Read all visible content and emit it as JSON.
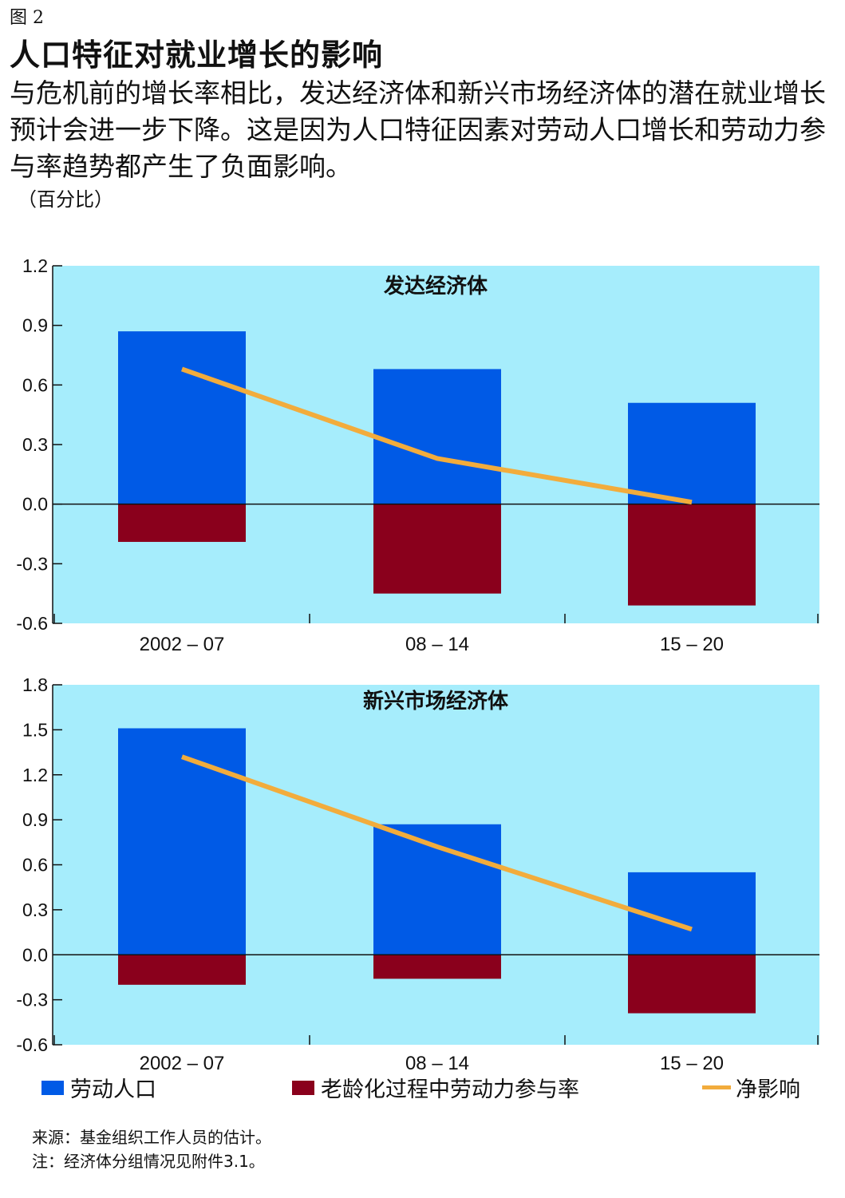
{
  "figure_label": "图 2",
  "title": "人口特征对就业增长的影响",
  "subtitle": "与危机前的增长率相比，发达经济体和新兴市场经济体的潜在就业增长预计会进一步下降。这是因为人口特征因素对劳动人口增长和劳动力参与率趋势都产生了负面影响。",
  "unit": "（百分比）",
  "colors": {
    "plot_background": "#a6edfc",
    "labor_population": "#005ae6",
    "aging_participation": "#8a001c",
    "net_effect": "#f2ac3c"
  },
  "legend": [
    {
      "label": "劳动人口",
      "kind": "bar",
      "color_key": "labor_population"
    },
    {
      "label": "老龄化过程中劳动力参与率",
      "kind": "bar",
      "color_key": "aging_participation"
    },
    {
      "label": "净影响",
      "kind": "line",
      "color_key": "net_effect"
    }
  ],
  "notes": {
    "source": "来源：基金组织工作人员的估计。",
    "note": "注：经济体分组情况见附件3.1。"
  },
  "chart_data": [
    {
      "type": "bar",
      "title": "发达经济体",
      "categories": [
        "2002 – 07",
        "08 – 14",
        "15 – 20"
      ],
      "ylim": [
        -0.6,
        1.2
      ],
      "yticks": [
        "1.2",
        "0.9",
        "0.6",
        "0.3",
        "0.0",
        "-0.3",
        "-0.6"
      ],
      "series": [
        {
          "name": "劳动人口",
          "kind": "bar",
          "values": [
            0.87,
            0.68,
            0.51
          ]
        },
        {
          "name": "老龄化过程中劳动力参与率",
          "kind": "bar",
          "values": [
            -0.19,
            -0.45,
            -0.51
          ]
        },
        {
          "name": "净影响",
          "kind": "line",
          "values": [
            0.68,
            0.23,
            0.01
          ]
        }
      ]
    },
    {
      "type": "bar",
      "title": "新兴市场经济体",
      "categories": [
        "2002 – 07",
        "08 – 14",
        "15 – 20"
      ],
      "ylim": [
        -0.6,
        1.8
      ],
      "yticks": [
        "1.8",
        "1.5",
        "1.2",
        "0.9",
        "0.6",
        "0.3",
        "0.0",
        "-0.3",
        "-0.6"
      ],
      "series": [
        {
          "name": "劳动人口",
          "kind": "bar",
          "values": [
            1.51,
            0.87,
            0.55
          ]
        },
        {
          "name": "老龄化过程中劳动力参与率",
          "kind": "bar",
          "values": [
            -0.2,
            -0.16,
            -0.39
          ]
        },
        {
          "name": "净影响",
          "kind": "line",
          "values": [
            1.32,
            0.72,
            0.17
          ]
        }
      ]
    }
  ]
}
